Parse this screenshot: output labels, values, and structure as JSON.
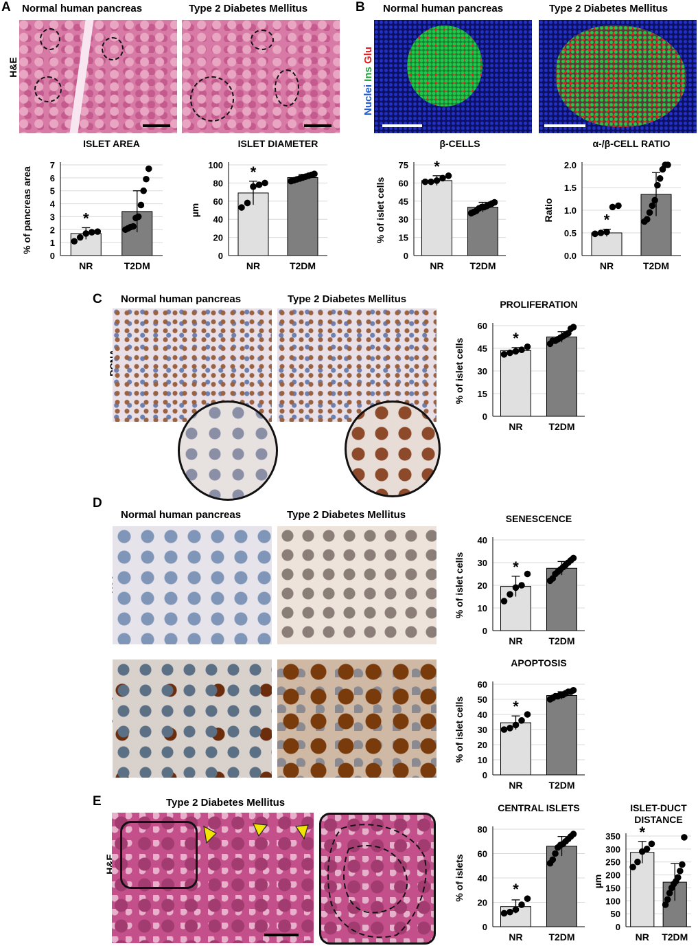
{
  "panels": {
    "A": {
      "letter": "A",
      "col1": "Normal human pancreas",
      "col2": "Type 2 Diabetes Mellitus",
      "row_label": "H&E"
    },
    "B": {
      "letter": "B",
      "col1": "Normal human pancreas",
      "col2": "Type 2 Diabetes Mellitus",
      "stain_nuclei": "Nuclei",
      "stain_ins": "Ins",
      "stain_glu": "Glu",
      "colors": {
        "nuclei": "#1f5bd6",
        "ins": "#1fa13a",
        "glu": "#e02020"
      }
    },
    "C": {
      "letter": "C",
      "col1": "Normal human pancreas",
      "col2": "Type 2 Diabetes Mellitus",
      "row_label": "PCNA"
    },
    "D": {
      "letter": "D",
      "col1": "Normal human pancreas",
      "col2": "Type 2 Diabetes Mellitus",
      "row_label1": "γH2A.x",
      "row_label2": "cCasp3"
    },
    "E": {
      "letter": "E",
      "title": "Type 2 Diabetes Mellitus",
      "row_label": "H&E",
      "arrow_color": "#f2e600"
    }
  },
  "chart_data": [
    {
      "id": "islet-area",
      "type": "bar",
      "title": "ISLET AREA",
      "ylabel": "% of pancreas area",
      "categories": [
        "NR",
        "T2DM"
      ],
      "values": [
        1.7,
        3.4
      ],
      "errors": [
        0.45,
        1.6
      ],
      "ylim": [
        0,
        7
      ],
      "yticks": [
        0,
        1,
        2,
        3,
        4,
        5,
        6,
        7
      ],
      "star": "*",
      "points": [
        [
          1.1,
          1.4,
          1.7,
          1.8,
          1.85
        ],
        [
          2.0,
          2.1,
          2.2,
          2.25,
          2.9,
          3.0,
          3.9,
          5.0,
          5.9,
          6.7
        ]
      ]
    },
    {
      "id": "islet-diameter",
      "type": "bar",
      "title": "ISLET DIAMETER",
      "ylabel": "µm",
      "categories": [
        "NR",
        "T2DM"
      ],
      "values": [
        69,
        86
      ],
      "errors": [
        13,
        3.5
      ],
      "ylim": [
        0,
        100
      ],
      "yticks": [
        0,
        20,
        40,
        60,
        80,
        100
      ],
      "star": "*",
      "points": [
        [
          53,
          58,
          76,
          78,
          80
        ],
        [
          82,
          83,
          84,
          85,
          86,
          87,
          88,
          89,
          90
        ]
      ]
    },
    {
      "id": "beta-cells",
      "type": "bar",
      "title": "β-CELLS",
      "ylabel": "% of islet cells",
      "categories": [
        "NR",
        "T2DM"
      ],
      "values": [
        62,
        40
      ],
      "errors": [
        4,
        4
      ],
      "ylim": [
        0,
        75
      ],
      "yticks": [
        0,
        15,
        30,
        45,
        60,
        75
      ],
      "star": "*",
      "points": [
        [
          61,
          61,
          62,
          64,
          66
        ],
        [
          35,
          36,
          37,
          39,
          40,
          40,
          41,
          42,
          43,
          44
        ]
      ]
    },
    {
      "id": "alpha-beta-ratio",
      "type": "bar",
      "title": "α-/β-CELL RATIO",
      "ylabel": "Ratio",
      "categories": [
        "NR",
        "T2DM"
      ],
      "values": [
        0.5,
        1.35
      ],
      "errors": [
        0.08,
        0.48
      ],
      "ylim": [
        0,
        2
      ],
      "yticks": [
        "0.0",
        "0.5",
        "1.0",
        "1.5",
        "2.0"
      ],
      "star": "*",
      "points": [
        [
          0.48,
          0.5,
          0.52,
          1.07,
          1.1
        ],
        [
          0.75,
          0.8,
          0.95,
          1.1,
          1.22,
          1.55,
          1.7,
          1.9,
          2.0,
          2.0
        ]
      ]
    },
    {
      "id": "proliferation",
      "type": "bar",
      "title": "PROLIFERATION",
      "ylabel": "% of islet cells",
      "categories": [
        "NR",
        "T2DM"
      ],
      "values": [
        43.5,
        52.5
      ],
      "errors": [
        2,
        3.5
      ],
      "ylim": [
        0,
        60
      ],
      "yticks": [
        0,
        15,
        30,
        45,
        60
      ],
      "star": "*",
      "points": [
        [
          41,
          42,
          43,
          44,
          46
        ],
        [
          48,
          50,
          50,
          51,
          52,
          53,
          54,
          55,
          58,
          59
        ]
      ]
    },
    {
      "id": "senescence",
      "type": "bar",
      "title": "SENESCENCE",
      "ylabel": "% of islet cells",
      "categories": [
        "NR",
        "T2DM"
      ],
      "values": [
        19.5,
        27.5
      ],
      "errors": [
        4.5,
        3
      ],
      "ylim": [
        0,
        40
      ],
      "yticks": [
        0,
        10,
        20,
        30,
        40
      ],
      "star": "*",
      "points": [
        [
          13,
          16,
          19,
          20,
          25
        ],
        [
          22,
          23,
          25,
          26,
          27,
          28,
          29,
          30,
          31,
          32
        ]
      ]
    },
    {
      "id": "apoptosis",
      "type": "bar",
      "title": "APOPTOSIS",
      "ylabel": "% of islet cells",
      "categories": [
        "NR",
        "T2DM"
      ],
      "values": [
        34.5,
        52.5
      ],
      "errors": [
        4.5,
        2.5
      ],
      "ylim": [
        0,
        60
      ],
      "yticks": [
        0,
        10,
        20,
        30,
        40,
        50,
        60
      ],
      "star": "*",
      "points": [
        [
          30,
          31,
          33,
          36,
          40
        ],
        [
          50,
          51,
          52,
          52,
          53,
          53,
          54,
          55,
          55,
          56
        ]
      ]
    },
    {
      "id": "central-islets",
      "type": "bar",
      "title": "CENTRAL ISLETS",
      "ylabel": "% of islets",
      "categories": [
        "NR",
        "T2DM"
      ],
      "values": [
        16.5,
        66
      ],
      "errors": [
        5.5,
        8
      ],
      "ylim": [
        0,
        80
      ],
      "yticks": [
        0,
        20,
        40,
        60,
        80
      ],
      "star": "*",
      "points": [
        [
          11,
          12,
          14,
          18,
          23
        ],
        [
          52,
          55,
          60,
          65,
          67,
          68,
          70,
          72,
          74,
          76
        ]
      ]
    },
    {
      "id": "islet-duct-distance",
      "type": "bar",
      "title": "ISLET-DUCT\nDISTANCE",
      "ylabel": "µm",
      "categories": [
        "NR",
        "T2DM"
      ],
      "values": [
        287,
        172
      ],
      "errors": [
        42,
        72
      ],
      "ylim": [
        0,
        350
      ],
      "yticks": [
        0,
        50,
        100,
        150,
        200,
        250,
        300,
        350
      ],
      "star": "*",
      "points": [
        [
          230,
          250,
          290,
          300,
          320
        ],
        [
          85,
          105,
          130,
          150,
          165,
          175,
          190,
          215,
          240,
          345
        ]
      ]
    }
  ]
}
